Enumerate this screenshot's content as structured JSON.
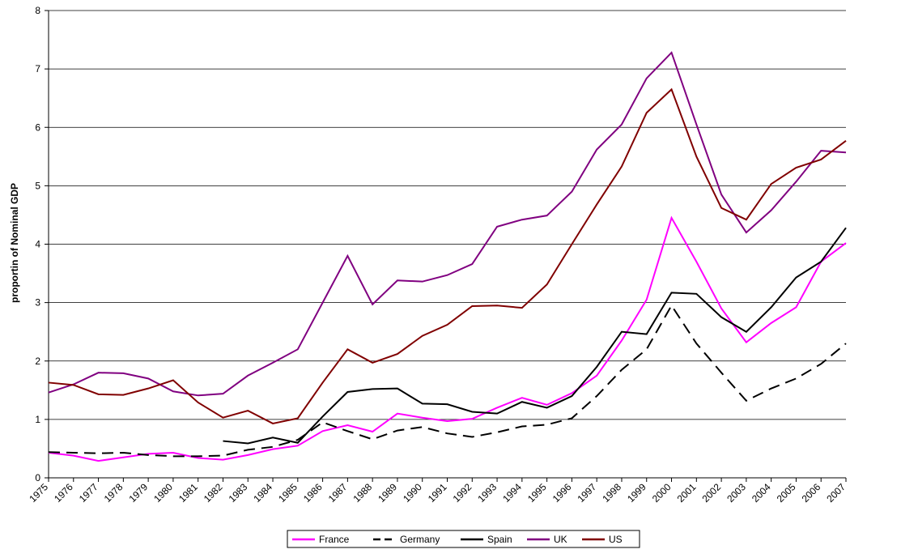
{
  "chart_data": {
    "type": "line",
    "y_label": "proportin of Nominal GDP",
    "categories": [
      "1975",
      "1976",
      "1977",
      "1978",
      "1979",
      "1980",
      "1981",
      "1982",
      "1983",
      "1984",
      "1985",
      "1986",
      "1987",
      "1988",
      "1989",
      "1990",
      "1991",
      "1992",
      "1993",
      "1994",
      "1995",
      "1996",
      "1997",
      "1998",
      "1999",
      "2000",
      "2001",
      "2002",
      "2003",
      "2004",
      "2005",
      "2006",
      "2007"
    ],
    "series": [
      {
        "name": "France",
        "color": "#ff00ff",
        "style": "solid",
        "values": [
          0.43,
          0.38,
          0.29,
          0.35,
          0.41,
          0.43,
          0.34,
          0.31,
          0.39,
          0.49,
          0.55,
          0.8,
          0.9,
          0.79,
          1.1,
          1.03,
          0.97,
          1.01,
          1.2,
          1.37,
          1.25,
          1.45,
          1.75,
          2.35,
          3.05,
          4.45,
          3.7,
          2.9,
          2.32,
          2.65,
          2.92,
          3.7,
          4.02
        ]
      },
      {
        "name": "Germany",
        "color": "#000000",
        "style": "dashed",
        "values": [
          0.44,
          0.43,
          0.42,
          0.43,
          0.39,
          0.37,
          0.37,
          0.38,
          0.48,
          0.53,
          0.65,
          0.95,
          0.8,
          0.66,
          0.81,
          0.87,
          0.76,
          0.7,
          0.78,
          0.88,
          0.91,
          1.02,
          1.4,
          1.85,
          2.2,
          2.95,
          2.3,
          1.8,
          1.32,
          1.53,
          1.7,
          1.95,
          2.3
        ]
      },
      {
        "name": "Spain",
        "color": "#000000",
        "style": "solid",
        "values": [
          null,
          null,
          null,
          null,
          null,
          null,
          null,
          0.63,
          0.59,
          0.69,
          0.6,
          1.05,
          1.47,
          1.52,
          1.53,
          1.27,
          1.26,
          1.13,
          1.1,
          1.3,
          1.2,
          1.4,
          1.9,
          2.5,
          2.46,
          3.17,
          3.15,
          2.75,
          2.5,
          2.92,
          3.43,
          3.7,
          4.28
        ]
      },
      {
        "name": "UK",
        "color": "#800080",
        "style": "solid",
        "values": [
          1.46,
          1.6,
          1.8,
          1.79,
          1.7,
          1.48,
          1.41,
          1.44,
          1.75,
          1.97,
          2.2,
          3.0,
          3.8,
          2.97,
          3.38,
          3.36,
          3.47,
          3.66,
          4.3,
          4.42,
          4.49,
          4.9,
          5.62,
          6.05,
          6.84,
          7.28,
          6.05,
          4.85,
          4.2,
          4.58,
          5.07,
          5.6,
          5.57
        ]
      },
      {
        "name": "US",
        "color": "#800000",
        "style": "solid",
        "values": [
          1.63,
          1.59,
          1.43,
          1.42,
          1.53,
          1.67,
          1.29,
          1.03,
          1.15,
          0.93,
          1.02,
          1.63,
          2.2,
          1.97,
          2.12,
          2.43,
          2.62,
          2.94,
          2.95,
          2.91,
          3.31,
          4.0,
          4.68,
          5.33,
          6.25,
          6.65,
          5.5,
          4.62,
          4.42,
          5.03,
          5.31,
          5.45,
          5.77
        ]
      }
    ],
    "ylim": [
      0,
      8
    ],
    "yticks": [
      0,
      1,
      2,
      3,
      4,
      5,
      6,
      7,
      8
    ],
    "grid": true,
    "legend": "bottom"
  }
}
